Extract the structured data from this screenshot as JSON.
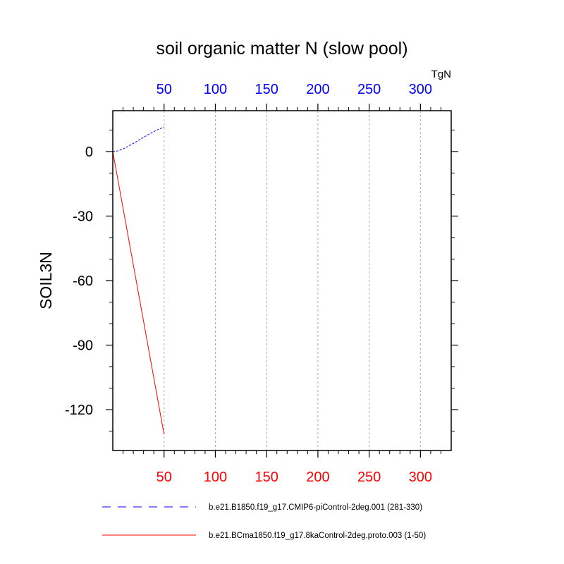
{
  "chart_data": {
    "type": "line",
    "title": "soil organic matter N (slow pool)",
    "ylabel": "SOIL3N",
    "units": "TgN",
    "xlim": [
      0,
      330
    ],
    "ylim": [
      -139,
      19
    ],
    "x_ticks": [
      50,
      100,
      150,
      200,
      250,
      300
    ],
    "y_ticks": [
      0,
      -30,
      -60,
      -90,
      -120
    ],
    "grid": "vertical-dashed",
    "colors": {
      "top_axis": "#0000ff",
      "bottom_axis": "#ff0000"
    },
    "series": [
      {
        "name": "b.e21.B1850.f19_g17.CMIP6-piControl-2deg.001 (281-330)",
        "color": "#0000ff",
        "dash": "dashed",
        "x": [
          0,
          5,
          10,
          15,
          20,
          25,
          30,
          35,
          40,
          45,
          50
        ],
        "y": [
          0,
          0.3,
          1.2,
          2.4,
          3.8,
          5.2,
          6.6,
          8.0,
          9.3,
          10.4,
          11.4
        ]
      },
      {
        "name": "b.e21.BCma1850.f19_g17.8kaControl-2deg.proto.003 (1-50)",
        "color": "#ff0000",
        "dash": "solid",
        "x": [
          0,
          50
        ],
        "y": [
          0,
          -131.5
        ]
      }
    ],
    "legend": "bottom"
  }
}
